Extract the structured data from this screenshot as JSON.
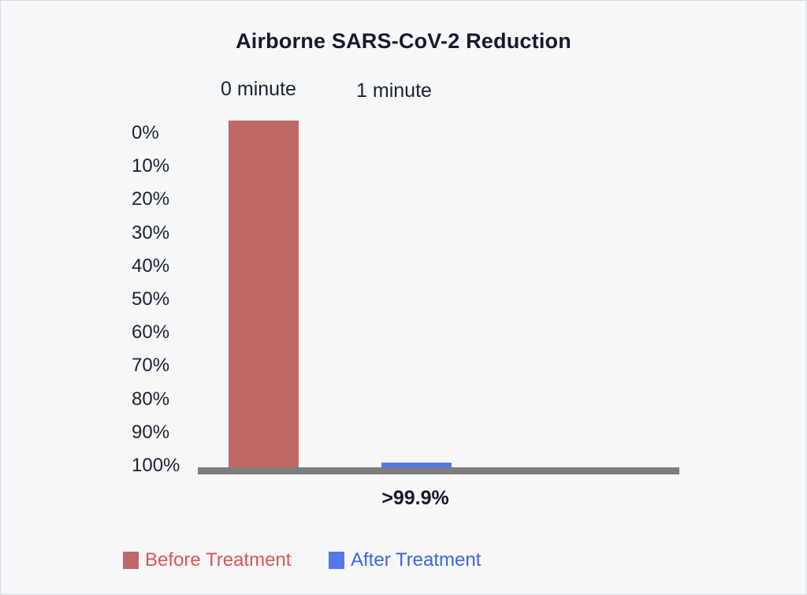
{
  "chart_data": {
    "type": "bar",
    "title": "Airborne SARS-CoV-2 Reduction",
    "categories": [
      "0 minute",
      "1 minute"
    ],
    "series": [
      {
        "name": "Before Treatment",
        "values": [
          100,
          null
        ],
        "color": "#c06865"
      },
      {
        "name": "After Treatment",
        "values": [
          null,
          0.1
        ],
        "color": "#5478ea"
      }
    ],
    "yticks": [
      "0%",
      "10%",
      "20%",
      "30%",
      "40%",
      "50%",
      "60%",
      "70%",
      "80%",
      "90%",
      "100%"
    ],
    "ylim": [
      0,
      100
    ],
    "annotation": ">99.9%",
    "legend": "bottom-left",
    "grid": false
  }
}
